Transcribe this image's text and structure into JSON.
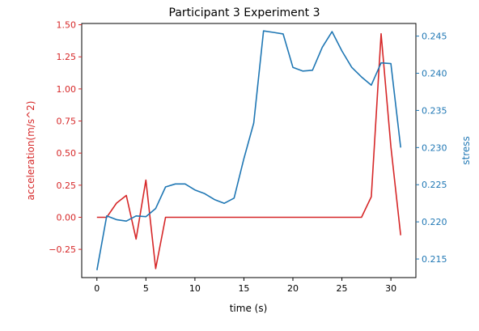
{
  "chart_data": {
    "type": "line",
    "title": "Participant 3 Experiment 3",
    "xlabel": "time (s)",
    "xlim": [
      -1.55,
      32.55
    ],
    "x_ticks": [
      0,
      5,
      10,
      15,
      20,
      25,
      30
    ],
    "grid": false,
    "legend": "none",
    "left_axis": {
      "label": "acceleration(m/s^2)",
      "color": "#d62728",
      "ylim": [
        -0.47,
        1.51
      ],
      "ticks": [
        -0.25,
        0.0,
        0.25,
        0.5,
        0.75,
        1.0,
        1.25,
        1.5
      ],
      "tick_labels": [
        "−0.25",
        "0.00",
        "0.25",
        "0.50",
        "0.75",
        "1.00",
        "1.25",
        "1.50"
      ]
    },
    "right_axis": {
      "label": "stress",
      "color": "#1f77b4",
      "ylim": [
        0.2125,
        0.2467
      ],
      "ticks": [
        0.215,
        0.22,
        0.225,
        0.23,
        0.235,
        0.24,
        0.245
      ],
      "tick_labels": [
        "0.215",
        "0.220",
        "0.225",
        "0.230",
        "0.235",
        "0.240",
        "0.245"
      ]
    },
    "series": [
      {
        "axis": "left",
        "color": "#d62728",
        "x": [
          0,
          1,
          2,
          3,
          4,
          5,
          6,
          7,
          8,
          9,
          10,
          11,
          12,
          13,
          14,
          15,
          16,
          17,
          18,
          19,
          20,
          21,
          22,
          23,
          24,
          25,
          26,
          27,
          28,
          29,
          30,
          31
        ],
        "y": [
          0.0,
          0.0,
          0.11,
          0.17,
          -0.17,
          0.29,
          -0.4,
          0.0,
          0.0,
          0.0,
          0.0,
          0.0,
          0.0,
          0.0,
          0.0,
          0.0,
          0.0,
          0.0,
          0.0,
          0.0,
          0.0,
          0.0,
          0.0,
          0.0,
          0.0,
          0.0,
          0.0,
          0.0,
          0.16,
          1.43,
          0.55,
          -0.14
        ]
      },
      {
        "axis": "right",
        "color": "#1f77b4",
        "x": [
          0,
          1,
          2,
          3,
          4,
          5,
          6,
          7,
          8,
          9,
          10,
          11,
          12,
          13,
          14,
          15,
          16,
          17,
          18,
          19,
          20,
          21,
          22,
          23,
          24,
          25,
          26,
          27,
          28,
          29,
          30,
          31
        ],
        "y": [
          0.2135,
          0.2208,
          0.2203,
          0.2201,
          0.2208,
          0.2207,
          0.2218,
          0.2247,
          0.2251,
          0.2251,
          0.2243,
          0.2238,
          0.223,
          0.2225,
          0.2232,
          0.2285,
          0.2333,
          0.2457,
          0.2455,
          0.2453,
          0.2408,
          0.2403,
          0.2404,
          0.2435,
          0.2456,
          0.243,
          0.2408,
          0.2395,
          0.2384,
          0.2414,
          0.2413,
          0.23
        ]
      }
    ]
  }
}
